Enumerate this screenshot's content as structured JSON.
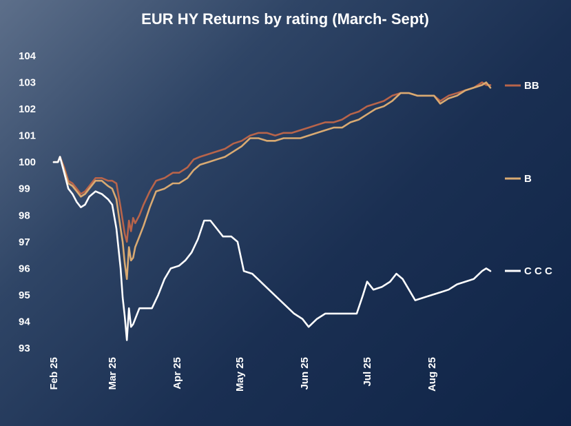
{
  "chart_data": {
    "type": "line",
    "title": "EUR HY Returns by rating (March- Sept)",
    "xlabel": "",
    "ylabel": "",
    "ylim": [
      93,
      104
    ],
    "yticks": [
      "93",
      "94",
      "95",
      "96",
      "97",
      "98",
      "99",
      "100",
      "101",
      "102",
      "103",
      "104"
    ],
    "xlim": [
      "2025-02-01",
      "2025-08-29"
    ],
    "xticks": [
      {
        "date": "2025-02-01",
        "label": "Feb 25"
      },
      {
        "date": "2025-03-01",
        "label": "Mar 25"
      },
      {
        "date": "2025-04-01",
        "label": "Apr 25"
      },
      {
        "date": "2025-05-01",
        "label": "May 25"
      },
      {
        "date": "2025-06-01",
        "label": "Jun 25"
      },
      {
        "date": "2025-07-01",
        "label": "Jul 25"
      },
      {
        "date": "2025-08-01",
        "label": "Aug 25"
      }
    ],
    "grid": false,
    "legend_placement": "right (inline labels)",
    "series": [
      {
        "name": "BB",
        "color": "#b8644a",
        "points": [
          [
            "2025-02-01",
            100.0
          ],
          [
            "2025-02-03",
            100.0
          ],
          [
            "2025-02-04",
            100.2
          ],
          [
            "2025-02-06",
            99.8
          ],
          [
            "2025-02-08",
            99.3
          ],
          [
            "2025-02-10",
            99.2
          ],
          [
            "2025-02-12",
            99.0
          ],
          [
            "2025-02-14",
            98.8
          ],
          [
            "2025-02-16",
            98.9
          ],
          [
            "2025-02-18",
            99.1
          ],
          [
            "2025-02-21",
            99.4
          ],
          [
            "2025-02-24",
            99.4
          ],
          [
            "2025-02-27",
            99.3
          ],
          [
            "2025-03-01",
            99.3
          ],
          [
            "2025-03-03",
            99.2
          ],
          [
            "2025-03-05",
            98.3
          ],
          [
            "2025-03-06",
            97.8
          ],
          [
            "2025-03-07",
            97.3
          ],
          [
            "2025-03-08",
            97.0
          ],
          [
            "2025-03-09",
            97.8
          ],
          [
            "2025-03-10",
            97.4
          ],
          [
            "2025-03-11",
            97.9
          ],
          [
            "2025-03-12",
            97.7
          ],
          [
            "2025-03-14",
            98.0
          ],
          [
            "2025-03-16",
            98.4
          ],
          [
            "2025-03-19",
            98.9
          ],
          [
            "2025-03-22",
            99.3
          ],
          [
            "2025-03-26",
            99.4
          ],
          [
            "2025-03-30",
            99.6
          ],
          [
            "2025-04-02",
            99.6
          ],
          [
            "2025-04-06",
            99.8
          ],
          [
            "2025-04-09",
            100.1
          ],
          [
            "2025-04-12",
            100.2
          ],
          [
            "2025-04-16",
            100.3
          ],
          [
            "2025-04-20",
            100.4
          ],
          [
            "2025-04-24",
            100.5
          ],
          [
            "2025-04-28",
            100.7
          ],
          [
            "2025-05-02",
            100.8
          ],
          [
            "2025-05-06",
            101.0
          ],
          [
            "2025-05-10",
            101.1
          ],
          [
            "2025-05-14",
            101.1
          ],
          [
            "2025-05-18",
            101.0
          ],
          [
            "2025-05-22",
            101.1
          ],
          [
            "2025-05-26",
            101.1
          ],
          [
            "2025-05-30",
            101.2
          ],
          [
            "2025-06-03",
            101.3
          ],
          [
            "2025-06-07",
            101.4
          ],
          [
            "2025-06-11",
            101.5
          ],
          [
            "2025-06-15",
            101.5
          ],
          [
            "2025-06-19",
            101.6
          ],
          [
            "2025-06-23",
            101.8
          ],
          [
            "2025-06-27",
            101.9
          ],
          [
            "2025-07-01",
            102.1
          ],
          [
            "2025-07-05",
            102.2
          ],
          [
            "2025-07-09",
            102.3
          ],
          [
            "2025-07-13",
            102.5
          ],
          [
            "2025-07-17",
            102.6
          ],
          [
            "2025-07-21",
            102.6
          ],
          [
            "2025-07-25",
            102.5
          ],
          [
            "2025-07-29",
            102.5
          ],
          [
            "2025-08-02",
            102.5
          ],
          [
            "2025-08-05",
            102.3
          ],
          [
            "2025-08-09",
            102.5
          ],
          [
            "2025-08-13",
            102.6
          ],
          [
            "2025-08-17",
            102.7
          ],
          [
            "2025-08-21",
            102.8
          ],
          [
            "2025-08-25",
            103.0
          ],
          [
            "2025-08-27",
            102.9
          ],
          [
            "2025-08-29",
            102.9
          ]
        ]
      },
      {
        "name": "B",
        "color": "#d9aa72",
        "points": [
          [
            "2025-02-01",
            100.0
          ],
          [
            "2025-02-03",
            100.0
          ],
          [
            "2025-02-04",
            100.2
          ],
          [
            "2025-02-06",
            99.7
          ],
          [
            "2025-02-08",
            99.2
          ],
          [
            "2025-02-10",
            99.1
          ],
          [
            "2025-02-12",
            98.9
          ],
          [
            "2025-02-14",
            98.7
          ],
          [
            "2025-02-16",
            98.8
          ],
          [
            "2025-02-18",
            99.0
          ],
          [
            "2025-02-21",
            99.3
          ],
          [
            "2025-02-24",
            99.3
          ],
          [
            "2025-02-27",
            99.1
          ],
          [
            "2025-03-01",
            99.0
          ],
          [
            "2025-03-03",
            98.6
          ],
          [
            "2025-03-05",
            97.5
          ],
          [
            "2025-03-06",
            97.0
          ],
          [
            "2025-03-07",
            96.2
          ],
          [
            "2025-03-08",
            95.6
          ],
          [
            "2025-03-09",
            96.8
          ],
          [
            "2025-03-10",
            96.3
          ],
          [
            "2025-03-11",
            96.4
          ],
          [
            "2025-03-12",
            96.8
          ],
          [
            "2025-03-14",
            97.2
          ],
          [
            "2025-03-16",
            97.6
          ],
          [
            "2025-03-19",
            98.3
          ],
          [
            "2025-03-22",
            98.9
          ],
          [
            "2025-03-26",
            99.0
          ],
          [
            "2025-03-30",
            99.2
          ],
          [
            "2025-04-02",
            99.2
          ],
          [
            "2025-04-06",
            99.4
          ],
          [
            "2025-04-09",
            99.7
          ],
          [
            "2025-04-12",
            99.9
          ],
          [
            "2025-04-16",
            100.0
          ],
          [
            "2025-04-20",
            100.1
          ],
          [
            "2025-04-24",
            100.2
          ],
          [
            "2025-04-28",
            100.4
          ],
          [
            "2025-05-02",
            100.6
          ],
          [
            "2025-05-06",
            100.9
          ],
          [
            "2025-05-10",
            100.9
          ],
          [
            "2025-05-14",
            100.8
          ],
          [
            "2025-05-18",
            100.8
          ],
          [
            "2025-05-22",
            100.9
          ],
          [
            "2025-05-26",
            100.9
          ],
          [
            "2025-05-30",
            100.9
          ],
          [
            "2025-06-03",
            101.0
          ],
          [
            "2025-06-07",
            101.1
          ],
          [
            "2025-06-11",
            101.2
          ],
          [
            "2025-06-15",
            101.3
          ],
          [
            "2025-06-19",
            101.3
          ],
          [
            "2025-06-23",
            101.5
          ],
          [
            "2025-06-27",
            101.6
          ],
          [
            "2025-07-01",
            101.8
          ],
          [
            "2025-07-05",
            102.0
          ],
          [
            "2025-07-09",
            102.1
          ],
          [
            "2025-07-13",
            102.3
          ],
          [
            "2025-07-17",
            102.6
          ],
          [
            "2025-07-21",
            102.6
          ],
          [
            "2025-07-25",
            102.5
          ],
          [
            "2025-07-29",
            102.5
          ],
          [
            "2025-08-02",
            102.5
          ],
          [
            "2025-08-05",
            102.2
          ],
          [
            "2025-08-09",
            102.4
          ],
          [
            "2025-08-13",
            102.5
          ],
          [
            "2025-08-17",
            102.7
          ],
          [
            "2025-08-21",
            102.8
          ],
          [
            "2025-08-25",
            102.9
          ],
          [
            "2025-08-27",
            103.0
          ],
          [
            "2025-08-29",
            102.8
          ]
        ]
      },
      {
        "name": "C C C",
        "color": "#ffffff",
        "points": [
          [
            "2025-02-01",
            100.0
          ],
          [
            "2025-02-03",
            100.0
          ],
          [
            "2025-02-04",
            100.2
          ],
          [
            "2025-02-06",
            99.6
          ],
          [
            "2025-02-08",
            99.0
          ],
          [
            "2025-02-10",
            98.8
          ],
          [
            "2025-02-12",
            98.5
          ],
          [
            "2025-02-14",
            98.3
          ],
          [
            "2025-02-16",
            98.4
          ],
          [
            "2025-02-18",
            98.7
          ],
          [
            "2025-02-21",
            98.9
          ],
          [
            "2025-02-24",
            98.8
          ],
          [
            "2025-02-27",
            98.6
          ],
          [
            "2025-03-01",
            98.4
          ],
          [
            "2025-03-03",
            97.5
          ],
          [
            "2025-03-05",
            96.0
          ],
          [
            "2025-03-06",
            94.9
          ],
          [
            "2025-03-07",
            94.2
          ],
          [
            "2025-03-08",
            93.3
          ],
          [
            "2025-03-09",
            94.5
          ],
          [
            "2025-03-10",
            93.8
          ],
          [
            "2025-03-11",
            93.9
          ],
          [
            "2025-03-12",
            94.1
          ],
          [
            "2025-03-14",
            94.5
          ],
          [
            "2025-03-17",
            94.5
          ],
          [
            "2025-03-20",
            94.5
          ],
          [
            "2025-03-23",
            95.0
          ],
          [
            "2025-03-26",
            95.6
          ],
          [
            "2025-03-29",
            96.0
          ],
          [
            "2025-04-02",
            96.1
          ],
          [
            "2025-04-05",
            96.3
          ],
          [
            "2025-04-08",
            96.6
          ],
          [
            "2025-04-11",
            97.1
          ],
          [
            "2025-04-14",
            97.8
          ],
          [
            "2025-04-17",
            97.8
          ],
          [
            "2025-04-20",
            97.5
          ],
          [
            "2025-04-23",
            97.2
          ],
          [
            "2025-04-27",
            97.2
          ],
          [
            "2025-04-30",
            97.0
          ],
          [
            "2025-05-03",
            95.9
          ],
          [
            "2025-05-07",
            95.8
          ],
          [
            "2025-05-11",
            95.5
          ],
          [
            "2025-05-15",
            95.2
          ],
          [
            "2025-05-19",
            94.9
          ],
          [
            "2025-05-23",
            94.6
          ],
          [
            "2025-05-27",
            94.3
          ],
          [
            "2025-05-31",
            94.1
          ],
          [
            "2025-06-03",
            93.8
          ],
          [
            "2025-06-07",
            94.1
          ],
          [
            "2025-06-11",
            94.3
          ],
          [
            "2025-06-15",
            94.3
          ],
          [
            "2025-06-19",
            94.3
          ],
          [
            "2025-06-23",
            94.3
          ],
          [
            "2025-06-26",
            94.3
          ],
          [
            "2025-06-29",
            95.0
          ],
          [
            "2025-07-01",
            95.5
          ],
          [
            "2025-07-04",
            95.2
          ],
          [
            "2025-07-08",
            95.3
          ],
          [
            "2025-07-12",
            95.5
          ],
          [
            "2025-07-15",
            95.8
          ],
          [
            "2025-07-18",
            95.6
          ],
          [
            "2025-07-21",
            95.2
          ],
          [
            "2025-07-24",
            94.8
          ],
          [
            "2025-07-28",
            94.9
          ],
          [
            "2025-08-01",
            95.0
          ],
          [
            "2025-08-05",
            95.1
          ],
          [
            "2025-08-09",
            95.2
          ],
          [
            "2025-08-13",
            95.4
          ],
          [
            "2025-08-17",
            95.5
          ],
          [
            "2025-08-21",
            95.6
          ],
          [
            "2025-08-25",
            95.9
          ],
          [
            "2025-08-27",
            96.0
          ],
          [
            "2025-08-29",
            95.9
          ]
        ]
      }
    ]
  }
}
